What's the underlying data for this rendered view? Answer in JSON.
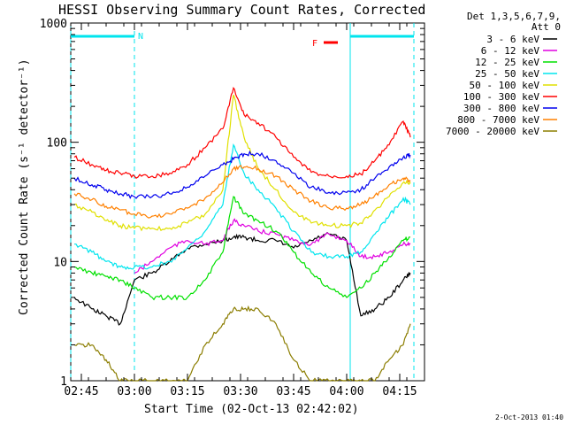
{
  "chart_data": {
    "type": "line",
    "title": "HESSI Observing Summary Count Rates, Corrected",
    "xlabel": "Start Time (02-Oct-13 02:42:02)",
    "ylabel": "Corrected Count Rate (s⁻¹ detector⁻¹)",
    "y_scale": "log",
    "ylim": [
      1,
      1000
    ],
    "xlim": [
      "02:42",
      "04:22"
    ],
    "x_tick_labels": [
      "02:45",
      "03:00",
      "03:15",
      "03:30",
      "03:45",
      "04:00",
      "04:15"
    ],
    "y_tick_labels": [
      "1",
      "10",
      "100",
      "1000"
    ],
    "legend_header": [
      "Det 1,3,5,6,7,9,",
      "Att 0"
    ],
    "legend_placement": "right",
    "footer": "2-Oct-2013 01:40",
    "annotations": {
      "night_marker": "N",
      "flare_marker": "F",
      "night_color": "#00e5ee",
      "flare_color": "#ff0000",
      "night_intervals": [
        [
          "02:42",
          "03:00"
        ],
        [
          "04:01",
          "04:19"
        ]
      ]
    },
    "x_times": [
      "02:43",
      "02:48",
      "02:52",
      "02:56",
      "03:00",
      "03:05",
      "03:10",
      "03:15",
      "03:20",
      "03:25",
      "03:28",
      "03:31",
      "03:35",
      "03:40",
      "03:45",
      "03:50",
      "03:55",
      "04:00",
      "04:04",
      "04:08",
      "04:12",
      "04:16",
      "04:18"
    ],
    "series": [
      {
        "name": "3 - 6 keV",
        "color": "#000000",
        "values": [
          5,
          4,
          3.5,
          3,
          7,
          8,
          10,
          13,
          14,
          15,
          16,
          16,
          15,
          15,
          13,
          15,
          17,
          15,
          3.5,
          4,
          5,
          7,
          8
        ]
      },
      {
        "name": "6 - 12 keV",
        "color": "#e000e0",
        "values": [
          null,
          null,
          null,
          null,
          8,
          10,
          13,
          15,
          14,
          15,
          22,
          20,
          18,
          17,
          15,
          14,
          17,
          15,
          11,
          11,
          12,
          14,
          14
        ]
      },
      {
        "name": "12 - 25 keV",
        "color": "#00e000",
        "values": [
          9,
          8,
          7.5,
          7,
          6,
          5,
          5,
          5,
          7,
          12,
          35,
          25,
          22,
          18,
          12,
          8,
          6,
          5,
          6,
          8,
          11,
          15,
          16
        ]
      },
      {
        "name": "25 - 50 keV",
        "color": "#00e5ee",
        "values": [
          14,
          12,
          10,
          9,
          9,
          9,
          10,
          13,
          18,
          30,
          95,
          55,
          40,
          28,
          18,
          12,
          11,
          11,
          12,
          17,
          24,
          34,
          30
        ]
      },
      {
        "name": "50 - 100 keV",
        "color": "#e0e000",
        "values": [
          30,
          26,
          22,
          20,
          19,
          19,
          19,
          21,
          25,
          40,
          250,
          110,
          60,
          40,
          26,
          21,
          20,
          20,
          21,
          27,
          35,
          46,
          45
        ]
      },
      {
        "name": "100 - 300 keV",
        "color": "#ff0000",
        "values": [
          75,
          65,
          58,
          55,
          52,
          52,
          55,
          65,
          90,
          130,
          285,
          170,
          145,
          110,
          75,
          56,
          52,
          52,
          54,
          70,
          95,
          150,
          110
        ]
      },
      {
        "name": "300 - 800 keV",
        "color": "#0000ee",
        "values": [
          50,
          44,
          40,
          37,
          35,
          35,
          37,
          42,
          52,
          65,
          72,
          80,
          80,
          70,
          55,
          42,
          38,
          38,
          40,
          50,
          62,
          75,
          78
        ]
      },
      {
        "name": "800 - 7000 keV",
        "color": "#ff8000",
        "values": [
          37,
          33,
          29,
          27,
          25,
          24,
          25,
          28,
          34,
          46,
          60,
          62,
          60,
          52,
          40,
          32,
          28,
          28,
          30,
          36,
          44,
          50,
          48
        ]
      },
      {
        "name": "7000 - 20000 keV",
        "color": "#8b7d00",
        "values": [
          2,
          2,
          1.5,
          1,
          1,
          1,
          1,
          1,
          2,
          3,
          4,
          4,
          4,
          3,
          1.5,
          1,
          1,
          1,
          1,
          1,
          1.5,
          2,
          3
        ]
      }
    ]
  }
}
